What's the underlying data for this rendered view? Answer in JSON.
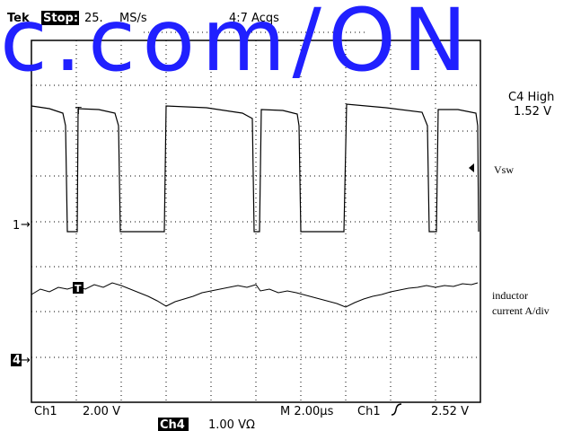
{
  "header": {
    "brand": "Tek",
    "state": "Stop:",
    "rate": "25.",
    "rate_unit": "MS/s",
    "acqs": "4:7 Acqs"
  },
  "watermark": "c.com/ON",
  "trigger_panel": {
    "title": "C4 High",
    "value": "1.52 V"
  },
  "traces": {
    "ch1_label": "Vsw",
    "ch4_label_1": "inductor",
    "ch4_label_2": "current A/div",
    "ch1_marker": "1",
    "ch4_marker": "4",
    "trigger_marker": "T"
  },
  "footer": {
    "ch1": "Ch1",
    "ch1_scale": "2.00 V",
    "timebase": "M 2.00µs",
    "trig_source": "Ch1",
    "trig_level": "2.52 V",
    "ch4": "Ch4",
    "ch4_scale": "1.00 VΩ"
  }
}
